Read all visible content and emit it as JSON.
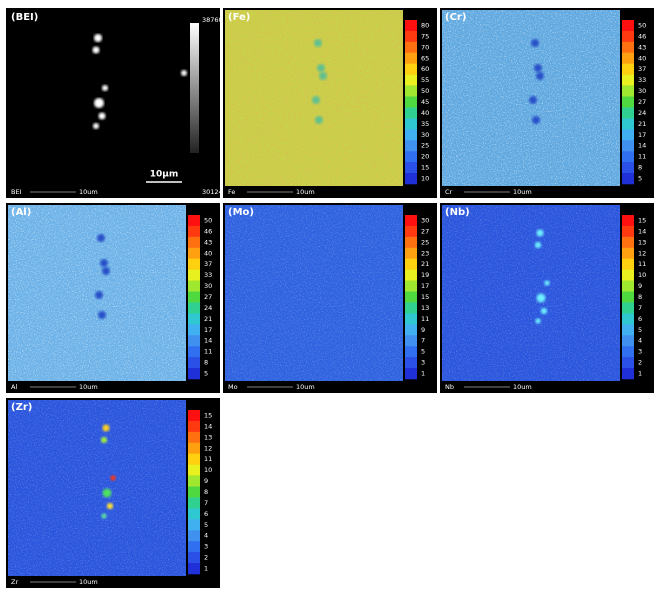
{
  "panels": [
    {
      "label": "(BEI)",
      "element": "BEI",
      "scale": "10um",
      "scalebar": "10μm",
      "max": "38760",
      "min": "30124"
    },
    {
      "label": "(Fe)",
      "element": "Fe",
      "scale": "10um",
      "ticks": [
        80,
        75,
        70,
        65,
        60,
        55,
        50,
        45,
        40,
        35,
        30,
        25,
        20,
        15,
        10
      ]
    },
    {
      "label": "(Cr)",
      "element": "Cr",
      "scale": "10um",
      "ticks": [
        50,
        46,
        43,
        40,
        37,
        33,
        30,
        27,
        24,
        21,
        17,
        14,
        11,
        8,
        5
      ]
    },
    {
      "label": "(Al)",
      "element": "Al",
      "scale": "10um",
      "ticks": [
        50,
        46,
        43,
        40,
        37,
        33,
        30,
        27,
        24,
        21,
        17,
        14,
        11,
        8,
        5
      ]
    },
    {
      "label": "(Mo)",
      "element": "Mo",
      "scale": "10um",
      "ticks": [
        30,
        27,
        25,
        23,
        21,
        19,
        17,
        15,
        13,
        11,
        9,
        7,
        5,
        3,
        1
      ]
    },
    {
      "label": "(Nb)",
      "element": "Nb",
      "scale": "10um",
      "ticks": [
        15,
        14,
        13,
        12,
        11,
        10,
        9,
        8,
        7,
        6,
        5,
        4,
        3,
        2,
        1
      ]
    },
    {
      "label": "(Zr)",
      "element": "Zr",
      "scale": "10um",
      "ticks": [
        15,
        14,
        13,
        12,
        11,
        10,
        9,
        8,
        7,
        6,
        5,
        4,
        3,
        2,
        1
      ]
    }
  ]
}
